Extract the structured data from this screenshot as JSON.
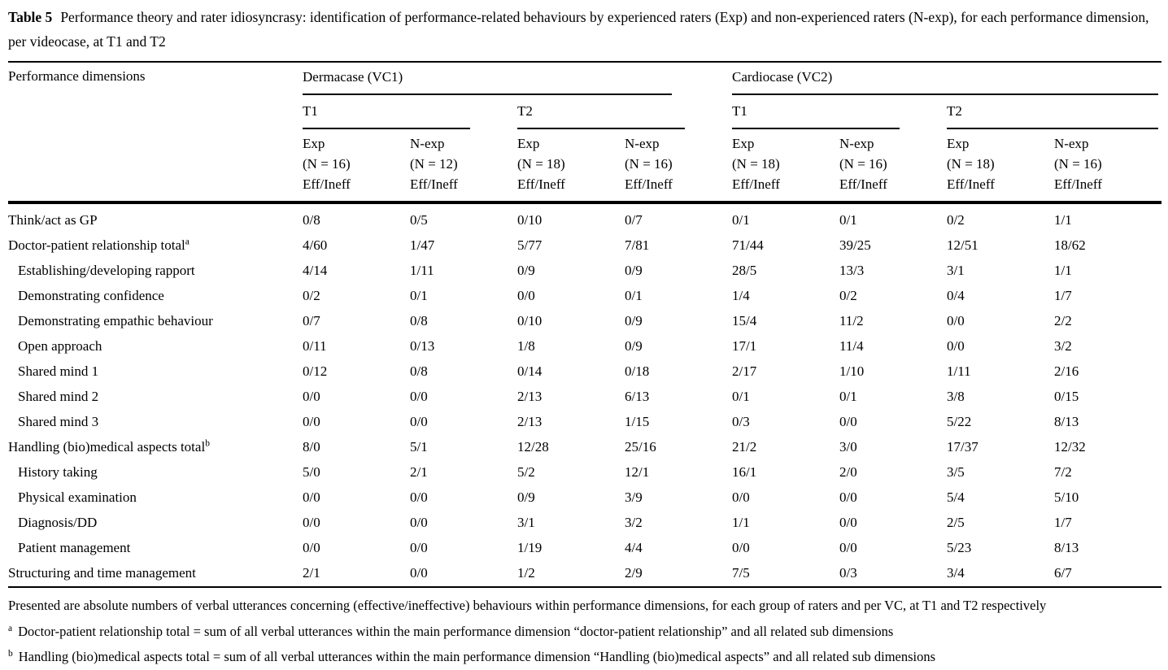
{
  "caption": {
    "label": "Table 5",
    "text": "Performance theory and rater idiosyncrasy: identification of performance-related behaviours by experienced raters (Exp) and non-experienced raters (N-exp), for each performance dimension, per videocase, at T1 and T2"
  },
  "table": {
    "col1_header": "Performance dimensions",
    "groups": [
      {
        "label": "Dermacase (VC1)"
      },
      {
        "label": "Cardiocase (VC2)"
      }
    ],
    "periods": [
      "T1",
      "T2",
      "T1",
      "T2"
    ],
    "subcols": [
      {
        "group": "Exp",
        "n": "(N = 16)",
        "measure": "Eff/Ineff"
      },
      {
        "group": "N-exp",
        "n": "(N = 12)",
        "measure": "Eff/Ineff"
      },
      {
        "group": "Exp",
        "n": "(N = 18)",
        "measure": "Eff/Ineff"
      },
      {
        "group": "N-exp",
        "n": "(N = 16)",
        "measure": "Eff/Ineff"
      },
      {
        "group": "Exp",
        "n": "(N = 18)",
        "measure": "Eff/Ineff"
      },
      {
        "group": "N-exp",
        "n": "(N = 16)",
        "measure": "Eff/Ineff"
      },
      {
        "group": "Exp",
        "n": "(N = 18)",
        "measure": "Eff/Ineff"
      },
      {
        "group": "N-exp",
        "n": "(N = 16)",
        "measure": "Eff/Ineff"
      }
    ],
    "rows": [
      {
        "label": "Think/act as GP",
        "sup": "",
        "values": [
          "0/8",
          "0/5",
          "0/10",
          "0/7",
          "0/1",
          "0/1",
          "0/2",
          "1/1"
        ]
      },
      {
        "label": "Doctor-patient relationship total",
        "sup": "a",
        "values": [
          "4/60",
          "1/47",
          "5/77",
          "7/81",
          "71/44",
          "39/25",
          "12/51",
          "18/62"
        ]
      },
      {
        "label": "Establishing/developing rapport",
        "sup": "",
        "values": [
          "4/14",
          "1/11",
          "0/9",
          "0/9",
          "28/5",
          "13/3",
          "3/1",
          "1/1"
        ]
      },
      {
        "label": "Demonstrating confidence",
        "sup": "",
        "values": [
          "0/2",
          "0/1",
          "0/0",
          "0/1",
          "1/4",
          "0/2",
          "0/4",
          "1/7"
        ]
      },
      {
        "label": "Demonstrating empathic behaviour",
        "sup": "",
        "values": [
          "0/7",
          "0/8",
          "0/10",
          "0/9",
          "15/4",
          "11/2",
          "0/0",
          "2/2"
        ]
      },
      {
        "label": "Open approach",
        "sup": "",
        "values": [
          "0/11",
          "0/13",
          "1/8",
          "0/9",
          "17/1",
          "11/4",
          "0/0",
          "3/2"
        ]
      },
      {
        "label": "Shared mind 1",
        "sup": "",
        "values": [
          "0/12",
          "0/8",
          "0/14",
          "0/18",
          "2/17",
          "1/10",
          "1/11",
          "2/16"
        ]
      },
      {
        "label": "Shared mind 2",
        "sup": "",
        "values": [
          "0/0",
          "0/0",
          "2/13",
          "6/13",
          "0/1",
          "0/1",
          "3/8",
          "0/15"
        ]
      },
      {
        "label": "Shared mind 3",
        "sup": "",
        "values": [
          "0/0",
          "0/0",
          "2/13",
          "1/15",
          "0/3",
          "0/0",
          "5/22",
          "8/13"
        ]
      },
      {
        "label": "Handling (bio)medical aspects total",
        "sup": "b",
        "values": [
          "8/0",
          "5/1",
          "12/28",
          "25/16",
          "21/2",
          "3/0",
          "17/37",
          "12/32"
        ]
      },
      {
        "label": "History taking",
        "sup": "",
        "values": [
          "5/0",
          "2/1",
          "5/2",
          "12/1",
          "16/1",
          "2/0",
          "3/5",
          "7/2"
        ]
      },
      {
        "label": "Physical examination",
        "sup": "",
        "values": [
          "0/0",
          "0/0",
          "0/9",
          "3/9",
          "0/0",
          "0/0",
          "5/4",
          "5/10"
        ]
      },
      {
        "label": "Diagnosis/DD",
        "sup": "",
        "values": [
          "0/0",
          "0/0",
          "3/1",
          "3/2",
          "1/1",
          "0/0",
          "2/5",
          "1/7"
        ]
      },
      {
        "label": "Patient management",
        "sup": "",
        "values": [
          "0/0",
          "0/0",
          "1/19",
          "4/4",
          "0/0",
          "0/0",
          "5/23",
          "8/13"
        ]
      },
      {
        "label": "Structuring and time management",
        "sup": "",
        "values": [
          "2/1",
          "0/0",
          "1/2",
          "2/9",
          "7/5",
          "0/3",
          "3/4",
          "6/7"
        ]
      }
    ]
  },
  "footnotes": {
    "general": "Presented are absolute numbers of verbal utterances concerning (effective/ineffective) behaviours within performance dimensions, for each group of raters and per VC, at T1 and T2 respectively",
    "a": {
      "marker": "a",
      "text": "Doctor-patient relationship total = sum of all verbal utterances within the main performance dimension “doctor-patient relationship” and all related sub dimensions"
    },
    "b": {
      "marker": "b",
      "text": "Handling (bio)medical aspects total = sum of all verbal utterances within the main performance dimension “Handling (bio)medical aspects” and all related sub dimensions"
    }
  }
}
